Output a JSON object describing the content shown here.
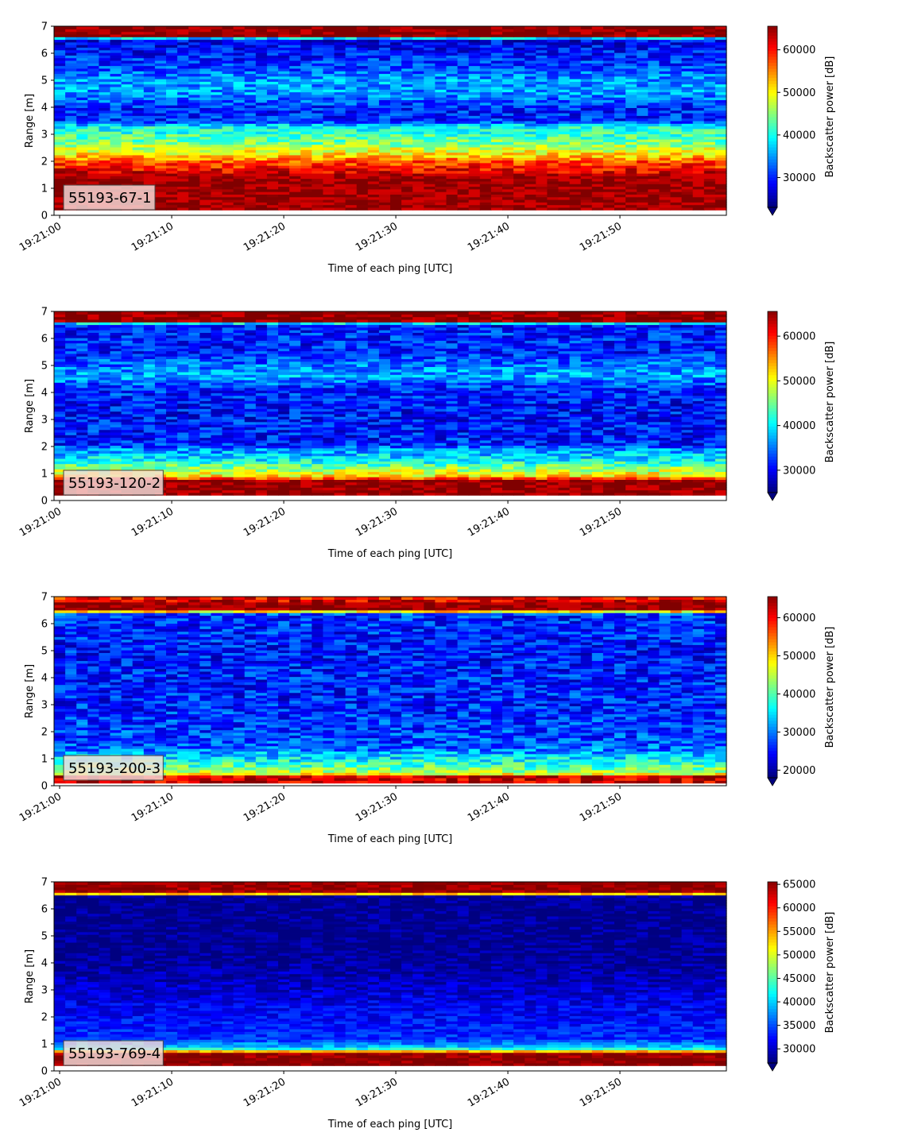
{
  "chart_data": [
    {
      "type": "heatmap",
      "label": "55193-67-1",
      "xlabel": "Time of each ping [UTC]",
      "ylabel": "Range [m]",
      "colorbar_label": "Backscatter power [dB]",
      "x_ticks": [
        "19:21:00",
        "19:21:10",
        "19:21:20",
        "19:21:30",
        "19:21:40",
        "19:21:50"
      ],
      "xlim_seconds": [
        -0.5,
        59.5
      ],
      "y_ticks": [
        "0",
        "1",
        "2",
        "3",
        "4",
        "5",
        "6",
        "7"
      ],
      "ylim": [
        0,
        7
      ],
      "colorbar_ticks": [
        "30000",
        "40000",
        "50000",
        "60000"
      ],
      "clim": [
        23000,
        65535
      ],
      "colormap": "jet",
      "profile": [
        {
          "r": 0.2,
          "v": 65535
        },
        {
          "r": 0.25,
          "v": 64000
        },
        {
          "r": 1.3,
          "v": 64500
        },
        {
          "r": 1.55,
          "v": 62000
        },
        {
          "r": 2.0,
          "v": 57000
        },
        {
          "r": 2.3,
          "v": 50000
        },
        {
          "r": 2.7,
          "v": 44000
        },
        {
          "r": 3.3,
          "v": 39000
        },
        {
          "r": 3.5,
          "v": 30000
        },
        {
          "r": 4.0,
          "v": 29500
        },
        {
          "r": 4.5,
          "v": 34500
        },
        {
          "r": 5.0,
          "v": 35000
        },
        {
          "r": 5.5,
          "v": 31000
        },
        {
          "r": 6.0,
          "v": 29000
        },
        {
          "r": 6.55,
          "v": 27500
        },
        {
          "r": 6.6,
          "v": 65535
        },
        {
          "r": 7.0,
          "v": 65535
        }
      ],
      "noise": 4500
    },
    {
      "type": "heatmap",
      "label": "55193-120-2",
      "xlabel": "Time of each ping [UTC]",
      "ylabel": "Range [m]",
      "colorbar_label": "Backscatter power [dB]",
      "x_ticks": [
        "19:21:00",
        "19:21:10",
        "19:21:20",
        "19:21:30",
        "19:21:40",
        "19:21:50"
      ],
      "xlim_seconds": [
        -0.5,
        59.5
      ],
      "y_ticks": [
        "0",
        "1",
        "2",
        "3",
        "4",
        "5",
        "6",
        "7"
      ],
      "ylim": [
        0,
        7
      ],
      "colorbar_ticks": [
        "30000",
        "40000",
        "50000",
        "60000"
      ],
      "clim": [
        25000,
        65535
      ],
      "colormap": "jet",
      "profile": [
        {
          "r": 0.2,
          "v": 65535
        },
        {
          "r": 0.8,
          "v": 65000
        },
        {
          "r": 0.85,
          "v": 53000
        },
        {
          "r": 1.1,
          "v": 48000
        },
        {
          "r": 1.5,
          "v": 40000
        },
        {
          "r": 1.9,
          "v": 36000
        },
        {
          "r": 2.1,
          "v": 31000
        },
        {
          "r": 3.5,
          "v": 30500
        },
        {
          "r": 4.2,
          "v": 32000
        },
        {
          "r": 4.6,
          "v": 37000
        },
        {
          "r": 5.0,
          "v": 35000
        },
        {
          "r": 5.5,
          "v": 31000
        },
        {
          "r": 6.2,
          "v": 31500
        },
        {
          "r": 6.55,
          "v": 30000
        },
        {
          "r": 6.6,
          "v": 65535
        },
        {
          "r": 7.0,
          "v": 65535
        }
      ],
      "noise": 4500
    },
    {
      "type": "heatmap",
      "label": "55193-200-3",
      "xlabel": "Time of each ping [UTC]",
      "ylabel": "Range [m]",
      "colorbar_label": "Backscatter power [dB]",
      "x_ticks": [
        "19:21:00",
        "19:21:10",
        "19:21:20",
        "19:21:30",
        "19:21:40",
        "19:21:50"
      ],
      "xlim_seconds": [
        -0.5,
        59.5
      ],
      "y_ticks": [
        "0",
        "1",
        "2",
        "3",
        "4",
        "5",
        "6",
        "7"
      ],
      "ylim": [
        0,
        7
      ],
      "colorbar_ticks": [
        "20000",
        "30000",
        "40000",
        "50000",
        "60000"
      ],
      "clim": [
        18000,
        65535
      ],
      "colormap": "jet",
      "profile": [
        {
          "r": 0.1,
          "v": 62000
        },
        {
          "r": 0.35,
          "v": 62000
        },
        {
          "r": 0.45,
          "v": 46000
        },
        {
          "r": 0.7,
          "v": 40000
        },
        {
          "r": 1.1,
          "v": 34000
        },
        {
          "r": 1.5,
          "v": 27500
        },
        {
          "r": 3.0,
          "v": 25500
        },
        {
          "r": 5.0,
          "v": 25000
        },
        {
          "r": 6.35,
          "v": 26000
        },
        {
          "r": 6.42,
          "v": 35000
        },
        {
          "r": 6.5,
          "v": 64000
        },
        {
          "r": 6.8,
          "v": 64500
        },
        {
          "r": 6.9,
          "v": 58000
        },
        {
          "r": 7.0,
          "v": 60000
        }
      ],
      "noise": 5500
    },
    {
      "type": "heatmap",
      "label": "55193-769-4",
      "xlabel": "Time of each ping [UTC]",
      "ylabel": "Range [m]",
      "colorbar_label": "Backscatter power [dB]",
      "x_ticks": [
        "19:21:00",
        "19:21:10",
        "19:21:20",
        "19:21:30",
        "19:21:40",
        "19:21:50"
      ],
      "xlim_seconds": [
        -0.5,
        59.5
      ],
      "y_ticks": [
        "0",
        "1",
        "2",
        "3",
        "4",
        "5",
        "6",
        "7"
      ],
      "ylim": [
        0,
        7
      ],
      "colorbar_ticks": [
        "30000",
        "35000",
        "40000",
        "45000",
        "50000",
        "55000",
        "60000",
        "65000"
      ],
      "clim": [
        27000,
        65535
      ],
      "colormap": "jet",
      "profile": [
        {
          "r": 0.2,
          "v": 65535
        },
        {
          "r": 0.65,
          "v": 65000
        },
        {
          "r": 0.75,
          "v": 52000
        },
        {
          "r": 0.85,
          "v": 40000
        },
        {
          "r": 1.2,
          "v": 33500
        },
        {
          "r": 2.0,
          "v": 32000
        },
        {
          "r": 3.0,
          "v": 30000
        },
        {
          "r": 4.0,
          "v": 28000
        },
        {
          "r": 5.0,
          "v": 27500
        },
        {
          "r": 6.5,
          "v": 27500
        },
        {
          "r": 6.58,
          "v": 60000
        },
        {
          "r": 6.65,
          "v": 64500
        },
        {
          "r": 7.0,
          "v": 65000
        }
      ],
      "noise": 2500
    }
  ]
}
